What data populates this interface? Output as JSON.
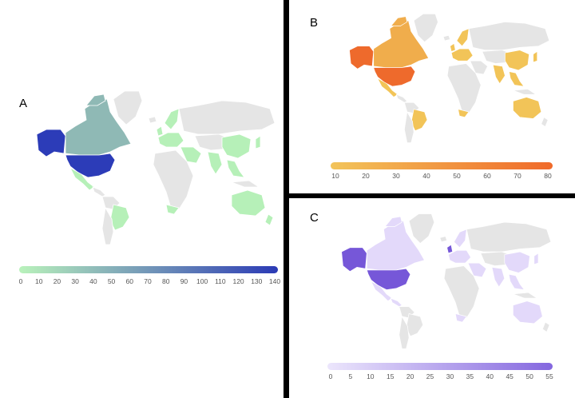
{
  "panels": [
    {
      "label": "A",
      "colors": {
        "low": "#b6f0b8",
        "mid": "#8fb9b5",
        "high": "#2c3cb8",
        "other": "#e5e5e5"
      },
      "scale": {
        "min_color": "#b9f2bb",
        "max_color": "#2b3ab5",
        "ticks": [
          "0",
          "10",
          "20",
          "30",
          "40",
          "50",
          "60",
          "70",
          "80",
          "90",
          "100",
          "110",
          "120",
          "130",
          "140"
        ]
      }
    },
    {
      "label": "B",
      "colors": {
        "low": "#f2c458",
        "mid": "#f0ad4c",
        "high": "#ee6a2c",
        "other": "#e5e5e5"
      },
      "scale": {
        "min_color": "#f2c45a",
        "max_color": "#f06a2a",
        "ticks": [
          "10",
          "20",
          "30",
          "40",
          "50",
          "60",
          "70",
          "80"
        ]
      }
    },
    {
      "label": "C",
      "colors": {
        "low": "#e3d9fa",
        "mid": "#b8a2ee",
        "high": "#7657d8",
        "other": "#e5e5e5"
      },
      "scale": {
        "min_color": "#ece6fc",
        "max_color": "#8467df",
        "ticks": [
          "0",
          "5",
          "10",
          "15",
          "20",
          "25",
          "30",
          "35",
          "40",
          "45",
          "50",
          "55"
        ]
      }
    }
  ]
}
